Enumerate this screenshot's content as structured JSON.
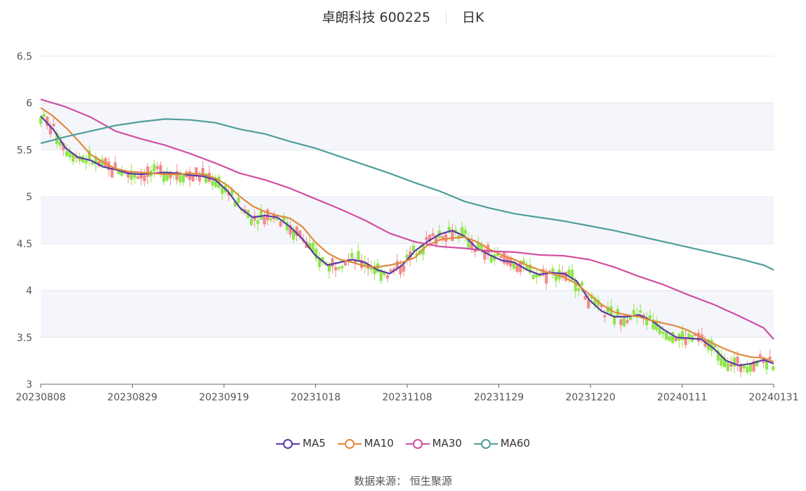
{
  "header": {
    "title": "卓朗科技 600225",
    "period": "日K"
  },
  "chart_data": {
    "type": "candlestick",
    "ylim": [
      3,
      6.5
    ],
    "y_ticks": [
      "3",
      "3.5",
      "4",
      "4.5",
      "5",
      "5.5",
      "6",
      "6.5"
    ],
    "x_ticks": [
      "20230808",
      "20230829",
      "20230919",
      "20231018",
      "20231108",
      "20231129",
      "20231220",
      "20240111",
      "20240131"
    ],
    "colors": {
      "up": "#f28a8a",
      "down": "#8ee64a"
    },
    "series": [
      {
        "name": "MA5",
        "color": "#5b3aa3",
        "values": [
          [
            0,
            5.86
          ],
          [
            5,
            5.72
          ],
          [
            10,
            5.52
          ],
          [
            15,
            5.42
          ],
          [
            20,
            5.39
          ],
          [
            25,
            5.32
          ],
          [
            30,
            5.29
          ],
          [
            35,
            5.25
          ],
          [
            40,
            5.24
          ],
          [
            45,
            5.25
          ],
          [
            50,
            5.26
          ],
          [
            55,
            5.25
          ],
          [
            60,
            5.23
          ],
          [
            65,
            5.22
          ],
          [
            70,
            5.18
          ],
          [
            75,
            5.06
          ],
          [
            80,
            4.88
          ],
          [
            85,
            4.78
          ],
          [
            90,
            4.8
          ],
          [
            95,
            4.78
          ],
          [
            100,
            4.68
          ],
          [
            105,
            4.55
          ],
          [
            110,
            4.38
          ],
          [
            115,
            4.27
          ],
          [
            120,
            4.3
          ],
          [
            125,
            4.33
          ],
          [
            130,
            4.3
          ],
          [
            135,
            4.22
          ],
          [
            140,
            4.18
          ],
          [
            145,
            4.27
          ],
          [
            150,
            4.42
          ],
          [
            155,
            4.52
          ],
          [
            160,
            4.6
          ],
          [
            165,
            4.64
          ],
          [
            170,
            4.58
          ],
          [
            175,
            4.45
          ],
          [
            180,
            4.38
          ],
          [
            185,
            4.32
          ],
          [
            190,
            4.3
          ],
          [
            195,
            4.22
          ],
          [
            200,
            4.17
          ],
          [
            205,
            4.19
          ],
          [
            210,
            4.18
          ],
          [
            215,
            4.1
          ],
          [
            220,
            3.9
          ],
          [
            225,
            3.78
          ],
          [
            230,
            3.72
          ],
          [
            235,
            3.72
          ],
          [
            240,
            3.74
          ],
          [
            245,
            3.68
          ],
          [
            250,
            3.58
          ],
          [
            255,
            3.5
          ],
          [
            260,
            3.49
          ],
          [
            265,
            3.48
          ],
          [
            270,
            3.38
          ],
          [
            275,
            3.25
          ],
          [
            280,
            3.2
          ],
          [
            285,
            3.22
          ],
          [
            290,
            3.26
          ],
          [
            294,
            3.22
          ]
        ]
      },
      {
        "name": "MA10",
        "color": "#e08a3c",
        "values": [
          [
            0,
            5.95
          ],
          [
            5,
            5.86
          ],
          [
            10,
            5.74
          ],
          [
            15,
            5.6
          ],
          [
            20,
            5.45
          ],
          [
            25,
            5.37
          ],
          [
            30,
            5.3
          ],
          [
            35,
            5.27
          ],
          [
            40,
            5.26
          ],
          [
            45,
            5.25
          ],
          [
            50,
            5.24
          ],
          [
            55,
            5.24
          ],
          [
            60,
            5.25
          ],
          [
            65,
            5.24
          ],
          [
            70,
            5.2
          ],
          [
            75,
            5.12
          ],
          [
            80,
            5.0
          ],
          [
            85,
            4.9
          ],
          [
            90,
            4.84
          ],
          [
            95,
            4.8
          ],
          [
            100,
            4.77
          ],
          [
            105,
            4.68
          ],
          [
            110,
            4.52
          ],
          [
            115,
            4.4
          ],
          [
            120,
            4.33
          ],
          [
            125,
            4.3
          ],
          [
            130,
            4.26
          ],
          [
            135,
            4.25
          ],
          [
            140,
            4.27
          ],
          [
            145,
            4.3
          ],
          [
            150,
            4.35
          ],
          [
            155,
            4.48
          ],
          [
            160,
            4.54
          ],
          [
            165,
            4.56
          ],
          [
            170,
            4.57
          ],
          [
            175,
            4.52
          ],
          [
            180,
            4.44
          ],
          [
            185,
            4.38
          ],
          [
            190,
            4.33
          ],
          [
            195,
            4.27
          ],
          [
            200,
            4.22
          ],
          [
            205,
            4.18
          ],
          [
            210,
            4.14
          ],
          [
            215,
            4.07
          ],
          [
            220,
            3.96
          ],
          [
            225,
            3.85
          ],
          [
            230,
            3.77
          ],
          [
            235,
            3.74
          ],
          [
            240,
            3.72
          ],
          [
            245,
            3.68
          ],
          [
            250,
            3.65
          ],
          [
            255,
            3.62
          ],
          [
            260,
            3.57
          ],
          [
            265,
            3.5
          ],
          [
            270,
            3.43
          ],
          [
            275,
            3.37
          ],
          [
            280,
            3.32
          ],
          [
            285,
            3.29
          ],
          [
            290,
            3.28
          ],
          [
            294,
            3.24
          ]
        ]
      },
      {
        "name": "MA30",
        "color": "#d14fa0",
        "values": [
          [
            0,
            6.04
          ],
          [
            10,
            5.96
          ],
          [
            20,
            5.85
          ],
          [
            30,
            5.7
          ],
          [
            40,
            5.62
          ],
          [
            50,
            5.55
          ],
          [
            60,
            5.46
          ],
          [
            70,
            5.36
          ],
          [
            80,
            5.25
          ],
          [
            90,
            5.18
          ],
          [
            100,
            5.09
          ],
          [
            110,
            4.98
          ],
          [
            120,
            4.87
          ],
          [
            130,
            4.75
          ],
          [
            140,
            4.61
          ],
          [
            150,
            4.52
          ],
          [
            160,
            4.47
          ],
          [
            170,
            4.45
          ],
          [
            180,
            4.42
          ],
          [
            190,
            4.41
          ],
          [
            200,
            4.38
          ],
          [
            210,
            4.37
          ],
          [
            220,
            4.33
          ],
          [
            230,
            4.25
          ],
          [
            240,
            4.15
          ],
          [
            250,
            4.06
          ],
          [
            260,
            3.95
          ],
          [
            270,
            3.85
          ],
          [
            280,
            3.73
          ],
          [
            290,
            3.6
          ],
          [
            294,
            3.48
          ]
        ]
      },
      {
        "name": "MA60",
        "color": "#4e9e9a",
        "values": [
          [
            0,
            5.57
          ],
          [
            10,
            5.64
          ],
          [
            20,
            5.7
          ],
          [
            30,
            5.76
          ],
          [
            40,
            5.8
          ],
          [
            50,
            5.83
          ],
          [
            60,
            5.82
          ],
          [
            70,
            5.79
          ],
          [
            80,
            5.72
          ],
          [
            90,
            5.67
          ],
          [
            100,
            5.59
          ],
          [
            110,
            5.52
          ],
          [
            120,
            5.43
          ],
          [
            130,
            5.34
          ],
          [
            140,
            5.25
          ],
          [
            150,
            5.15
          ],
          [
            160,
            5.06
          ],
          [
            170,
            4.95
          ],
          [
            180,
            4.88
          ],
          [
            190,
            4.82
          ],
          [
            200,
            4.78
          ],
          [
            210,
            4.74
          ],
          [
            220,
            4.69
          ],
          [
            230,
            4.64
          ],
          [
            240,
            4.58
          ],
          [
            250,
            4.52
          ],
          [
            260,
            4.46
          ],
          [
            270,
            4.4
          ],
          [
            280,
            4.34
          ],
          [
            290,
            4.27
          ],
          [
            294,
            4.22
          ]
        ]
      }
    ],
    "x_extent": 294
  },
  "legend": [
    "MA5",
    "MA10",
    "MA30",
    "MA60"
  ],
  "footer": {
    "source": "数据来源： 恒生聚源"
  }
}
